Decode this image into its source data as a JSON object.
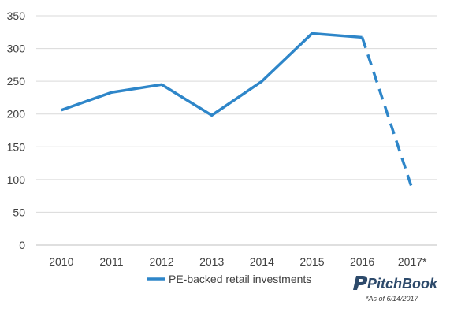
{
  "chart_data": {
    "type": "line",
    "categories": [
      "2010",
      "2011",
      "2012",
      "2013",
      "2014",
      "2015",
      "2016",
      "2017*"
    ],
    "series": [
      {
        "name": "PE-backed retail investments",
        "values": [
          206,
          233,
          245,
          198,
          250,
          323,
          317,
          85
        ],
        "color": "#2e86c9",
        "dashed_from_category": "2016"
      }
    ],
    "title": "",
    "xlabel": "",
    "ylabel": "",
    "ylim": [
      0,
      350
    ],
    "yticks": [
      "0",
      "50",
      "100",
      "150",
      "200",
      "250",
      "300",
      "350"
    ],
    "grid": true,
    "legend_position": "bottom"
  },
  "brand": {
    "name": "PitchBook",
    "footnote": "*As of 6/14/2017"
  }
}
